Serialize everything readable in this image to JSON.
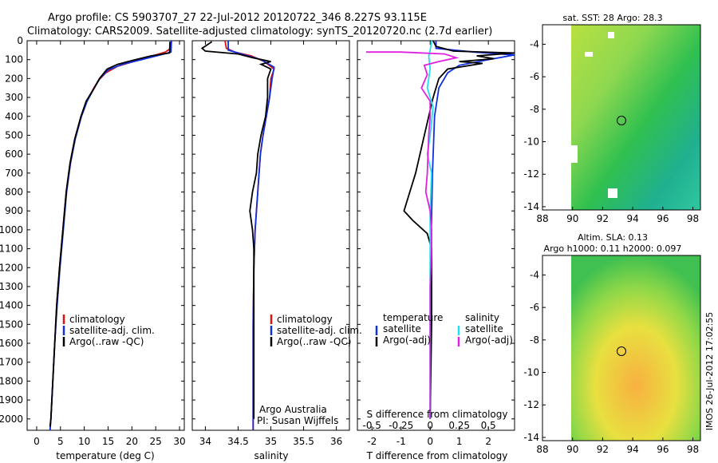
{
  "header": {
    "title_line1": "Argo profile: CS 5903707_27 22-Jul-2012 20120722_346 8.227S 93.115E",
    "title_line2": "Climatology: CARS2009. Satellite-adjusted climatology: synTS_20120720.nc (2.7d earlier)"
  },
  "colors": {
    "climatology": "#e01010",
    "satellite": "#1030e0",
    "argo": "#000000",
    "salinity_sat": "#20e0f0",
    "salinity_argo": "#e020e0"
  },
  "credit": {
    "org": "Argo Australia",
    "pi": "PI: Susan Wijffels"
  },
  "timestamp": "IMOS 26-Jul-2012 17:02:55",
  "chart_data": [
    {
      "type": "line",
      "panel": "temperature",
      "xlabel": "temperature (deg C)",
      "ylabel": "",
      "xlim": [
        -2,
        31
      ],
      "ylim": [
        2060,
        0
      ],
      "x_ticks": [
        0,
        5,
        10,
        15,
        20,
        25,
        30
      ],
      "y_ticks": [
        0,
        100,
        200,
        300,
        400,
        500,
        600,
        700,
        800,
        900,
        1000,
        1100,
        1200,
        1300,
        1400,
        1500,
        1600,
        1700,
        1800,
        1900,
        2000
      ],
      "legend": [
        "climatology",
        "satellite-adj. clim.",
        "Argo(..raw -QC)"
      ],
      "series": [
        {
          "name": "climatology",
          "color": "#e01010",
          "points": [
            [
              28.3,
              0
            ],
            [
              28.2,
              40
            ],
            [
              27.0,
              60
            ],
            [
              25,
              75
            ],
            [
              21,
              105
            ],
            [
              17,
              135
            ],
            [
              14.5,
              170
            ],
            [
              13,
              210
            ],
            [
              12,
              250
            ],
            [
              10.5,
              320
            ],
            [
              9.3,
              400
            ],
            [
              8,
              520
            ],
            [
              7.0,
              650
            ],
            [
              6.2,
              800
            ],
            [
              5.5,
              1000
            ],
            [
              4.8,
              1200
            ],
            [
              4.2,
              1400
            ],
            [
              3.8,
              1600
            ],
            [
              3.4,
              1800
            ],
            [
              3.0,
              2000
            ],
            [
              2.8,
              2060
            ]
          ]
        },
        {
          "name": "satellite-adj. clim.",
          "color": "#1030e0",
          "points": [
            [
              28.3,
              0
            ],
            [
              28.2,
              60
            ],
            [
              26,
              75
            ],
            [
              22,
              100
            ],
            [
              18,
              125
            ],
            [
              15,
              155
            ],
            [
              13.4,
              195
            ],
            [
              12.2,
              245
            ],
            [
              10.6,
              320
            ],
            [
              9.4,
              400
            ],
            [
              8.1,
              520
            ],
            [
              7.1,
              650
            ],
            [
              6.3,
              800
            ],
            [
              5.6,
              1000
            ],
            [
              4.9,
              1200
            ],
            [
              4.3,
              1400
            ],
            [
              3.8,
              1600
            ],
            [
              3.4,
              1800
            ],
            [
              3.0,
              2000
            ],
            [
              2.8,
              2060
            ]
          ]
        },
        {
          "name": "Argo(..raw -QC)",
          "color": "#000000",
          "points": [
            [
              28.0,
              5
            ],
            [
              27.9,
              65
            ],
            [
              24,
              80
            ],
            [
              20,
              105
            ],
            [
              17,
              125
            ],
            [
              14.8,
              150
            ],
            [
              13.2,
              200
            ],
            [
              12.1,
              250
            ],
            [
              10.4,
              320
            ],
            [
              9.3,
              400
            ],
            [
              8.0,
              520
            ],
            [
              7.0,
              650
            ],
            [
              6.2,
              800
            ],
            [
              5.5,
              1000
            ],
            [
              4.8,
              1200
            ],
            [
              4.2,
              1400
            ],
            [
              3.8,
              1600
            ],
            [
              3.4,
              1800
            ],
            [
              3.0,
              2000
            ],
            [
              2.8,
              2040
            ]
          ]
        }
      ]
    },
    {
      "type": "line",
      "panel": "salinity",
      "xlabel": "salinity",
      "ylabel": "",
      "xlim": [
        33.8,
        36.2
      ],
      "ylim": [
        2060,
        0
      ],
      "x_ticks": [
        34,
        34.5,
        35,
        35.5,
        36
      ],
      "legend": [
        "climatology",
        "satellite-adj. clim.",
        "Argo(..raw -QC)"
      ],
      "series": [
        {
          "name": "climatology",
          "color": "#e01010",
          "points": [
            [
              34.3,
              0
            ],
            [
              34.32,
              40
            ],
            [
              34.45,
              60
            ],
            [
              34.7,
              80
            ],
            [
              34.9,
              110
            ],
            [
              35.05,
              150
            ],
            [
              35.0,
              200
            ],
            [
              34.98,
              300
            ],
            [
              34.93,
              400
            ],
            [
              34.88,
              500
            ],
            [
              34.84,
              600
            ],
            [
              34.8,
              800
            ],
            [
              34.76,
              1000
            ],
            [
              34.74,
              1200
            ],
            [
              34.73,
              1500
            ],
            [
              34.73,
              2000
            ],
            [
              34.73,
              2060
            ]
          ]
        },
        {
          "name": "satellite-adj. clim.",
          "color": "#1030e0",
          "points": [
            [
              34.35,
              0
            ],
            [
              34.35,
              50
            ],
            [
              34.55,
              70
            ],
            [
              34.85,
              100
            ],
            [
              35.05,
              140
            ],
            [
              35.02,
              200
            ],
            [
              34.98,
              300
            ],
            [
              34.93,
              400
            ],
            [
              34.88,
              500
            ],
            [
              34.84,
              600
            ],
            [
              34.8,
              800
            ],
            [
              34.76,
              1000
            ],
            [
              34.74,
              1200
            ],
            [
              34.73,
              1500
            ],
            [
              34.73,
              2000
            ],
            [
              34.73,
              2060
            ]
          ]
        },
        {
          "name": "Argo(..raw -QC)",
          "color": "#000000",
          "points": [
            [
              34.1,
              5
            ],
            [
              33.95,
              40
            ],
            [
              34.0,
              55
            ],
            [
              34.5,
              70
            ],
            [
              34.72,
              90
            ],
            [
              35.0,
              110
            ],
            [
              34.85,
              125
            ],
            [
              35.0,
              150
            ],
            [
              34.95,
              200
            ],
            [
              34.95,
              300
            ],
            [
              34.92,
              400
            ],
            [
              34.85,
              500
            ],
            [
              34.8,
              600
            ],
            [
              34.78,
              700
            ],
            [
              34.72,
              800
            ],
            [
              34.68,
              900
            ],
            [
              34.72,
              1000
            ],
            [
              34.74,
              1100
            ],
            [
              34.74,
              1200
            ],
            [
              34.74,
              1500
            ],
            [
              34.74,
              2000
            ]
          ]
        }
      ]
    },
    {
      "type": "line",
      "panel": "difference",
      "xlabel": "T difference from climatology",
      "xlabel_top": "S difference from climatology",
      "xlim": [
        -2.5,
        2.9
      ],
      "ylim": [
        2060,
        0
      ],
      "x_ticks": [
        -2,
        -1,
        0,
        1,
        2
      ],
      "x_ticks_top": [
        "-0.5",
        "-0.25",
        "0",
        "0.25",
        "0.5"
      ],
      "legend_titles": [
        "temperature",
        "salinity"
      ],
      "legend": [
        "satellite",
        "Argo(-adj)",
        "satellite",
        "Argo(-adj)"
      ],
      "series": [
        {
          "name": "satellite",
          "group": "temperature",
          "color": "#1030e0",
          "points": [
            [
              0.2,
              0
            ],
            [
              0.2,
              40
            ],
            [
              1.5,
              60
            ],
            [
              2.9,
              75
            ],
            [
              2.0,
              100
            ],
            [
              1.0,
              130
            ],
            [
              0.6,
              170
            ],
            [
              0.3,
              250
            ],
            [
              0.15,
              400
            ],
            [
              0.08,
              700
            ],
            [
              0.04,
              1000
            ],
            [
              0.02,
              1500
            ],
            [
              0.0,
              2000
            ]
          ]
        },
        {
          "name": "Argo(-adj)",
          "group": "temperature",
          "color": "#000000",
          "points": [
            [
              0.1,
              0
            ],
            [
              0.2,
              30
            ],
            [
              0.8,
              55
            ],
            [
              2.9,
              65
            ],
            [
              1.6,
              80
            ],
            [
              2.2,
              95
            ],
            [
              1.0,
              110
            ],
            [
              1.8,
              120
            ],
            [
              0.6,
              150
            ],
            [
              0.3,
              200
            ],
            [
              0.1,
              300
            ],
            [
              -0.2,
              500
            ],
            [
              -0.5,
              700
            ],
            [
              -0.7,
              800
            ],
            [
              -0.9,
              900
            ],
            [
              -0.6,
              950
            ],
            [
              -0.1,
              1020
            ],
            [
              0.05,
              1100
            ],
            [
              0.05,
              1500
            ],
            [
              0.0,
              2000
            ]
          ]
        },
        {
          "name": "satellite",
          "group": "salinity",
          "color": "#20e0f0",
          "points": [
            [
              0.05,
              0
            ],
            [
              0.0,
              50
            ],
            [
              -0.05,
              80
            ],
            [
              0.0,
              150
            ],
            [
              -0.1,
              250
            ],
            [
              0.1,
              350
            ],
            [
              0.0,
              500
            ],
            [
              -0.1,
              600
            ],
            [
              0.05,
              700
            ],
            [
              0.0,
              900
            ],
            [
              0.0,
              1200
            ],
            [
              0.0,
              1600
            ],
            [
              0.0,
              2000
            ]
          ]
        },
        {
          "name": "Argo(-adj)",
          "group": "salinity",
          "color": "#e020e0",
          "points": [
            [
              -2.2,
              60
            ],
            [
              -1.0,
              60
            ],
            [
              0.5,
              70
            ],
            [
              0.9,
              90
            ],
            [
              0.3,
              110
            ],
            [
              -0.2,
              130
            ],
            [
              -0.1,
              180
            ],
            [
              -0.3,
              250
            ],
            [
              0.0,
              320
            ],
            [
              0.0,
              400
            ],
            [
              -0.05,
              500
            ],
            [
              -0.1,
              700
            ],
            [
              -0.15,
              800
            ],
            [
              0.0,
              900
            ],
            [
              0.05,
              1000
            ],
            [
              0.05,
              1100
            ],
            [
              0.0,
              1300
            ],
            [
              0.0,
              1800
            ],
            [
              0.0,
              2000
            ]
          ]
        }
      ]
    },
    {
      "type": "heatmap",
      "panel": "sst_map",
      "title": "sat. SST: 28 Argo: 28.3",
      "xlim": [
        88,
        98.5
      ],
      "ylim": [
        -14.2,
        -2.8
      ],
      "x_ticks": [
        88,
        90,
        92,
        94,
        96,
        98
      ],
      "y_ticks": [
        -4,
        -6,
        -8,
        -10,
        -12,
        -14
      ],
      "data_extent": [
        90,
        98.5
      ],
      "marker": [
        93.1,
        -8.2
      ]
    },
    {
      "type": "heatmap",
      "panel": "sla_map",
      "title": "Altim. SLA: 0.13",
      "subtitle": "Argo h1000: 0.11 h2000: 0.097",
      "xlim": [
        88,
        98.5
      ],
      "ylim": [
        -14.2,
        -2.8
      ],
      "x_ticks": [
        88,
        90,
        92,
        94,
        96,
        98
      ],
      "y_ticks": [
        -4,
        -6,
        -8,
        -10,
        -12,
        -14
      ],
      "data_extent": [
        90,
        98.5
      ],
      "marker": [
        93.1,
        -8.2
      ]
    }
  ]
}
